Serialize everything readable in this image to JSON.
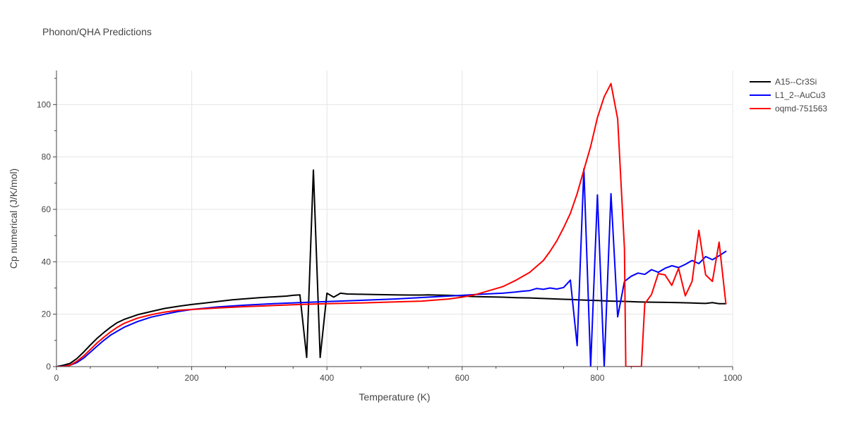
{
  "chart_data": {
    "type": "line",
    "title": "Phonon/QHA Predictions",
    "xlabel": "Temperature (K)",
    "ylabel": "Cp numerical (J/K/mol)",
    "xlim": [
      0,
      1000
    ],
    "ylim": [
      0,
      113
    ],
    "xticks": [
      0,
      200,
      400,
      600,
      800,
      1000
    ],
    "yticks": [
      0,
      20,
      40,
      60,
      80,
      100
    ],
    "grid": true,
    "legend_position": "top-right",
    "series": [
      {
        "name": "A15--Cr3Si",
        "color": "#000000",
        "x": [
          0,
          10,
          20,
          30,
          40,
          50,
          60,
          70,
          80,
          90,
          100,
          120,
          140,
          160,
          180,
          200,
          220,
          240,
          260,
          280,
          300,
          320,
          340,
          350,
          360,
          370,
          380,
          390,
          400,
          410,
          420,
          430,
          450,
          470,
          500,
          520,
          540,
          550,
          560,
          580,
          600,
          610,
          620,
          640,
          660,
          680,
          700,
          720,
          740,
          750,
          760,
          770,
          780,
          790,
          800,
          810,
          820,
          840,
          860,
          880,
          900,
          920,
          940,
          950,
          960,
          970,
          980,
          990
        ],
        "y": [
          0,
          0.5,
          1.2,
          3.0,
          5.5,
          8.2,
          10.8,
          13.0,
          15.0,
          16.8,
          18.0,
          19.8,
          21.0,
          22.2,
          23.0,
          23.7,
          24.3,
          24.9,
          25.5,
          25.9,
          26.3,
          26.6,
          26.9,
          27.2,
          27.4,
          3.5,
          75,
          3.5,
          28,
          26.5,
          28,
          27.7,
          27.6,
          27.5,
          27.4,
          27.3,
          27.3,
          27.4,
          27.3,
          27.2,
          27.0,
          26.8,
          26.7,
          26.6,
          26.5,
          26.3,
          26.2,
          26.0,
          25.8,
          25.7,
          25.6,
          25.5,
          25.4,
          25.3,
          25.2,
          25.1,
          25.0,
          24.9,
          24.7,
          24.6,
          24.5,
          24.4,
          24.3,
          24.2,
          24.1,
          24.4,
          24.0,
          24.0
        ]
      },
      {
        "name": "L1_2--AuCu3",
        "color": "#0000ff",
        "x": [
          0,
          10,
          20,
          30,
          40,
          50,
          60,
          70,
          80,
          90,
          100,
          120,
          140,
          160,
          180,
          200,
          240,
          280,
          320,
          360,
          400,
          450,
          500,
          550,
          600,
          620,
          640,
          660,
          680,
          690,
          700,
          710,
          720,
          730,
          740,
          750,
          760,
          770,
          780,
          790,
          800,
          810,
          820,
          830,
          840,
          850,
          860,
          870,
          880,
          890,
          900,
          910,
          920,
          930,
          940,
          950,
          960,
          970,
          980,
          990
        ],
        "y": [
          0,
          0.1,
          0.5,
          1.5,
          3.2,
          5.5,
          7.8,
          10.0,
          12.0,
          13.5,
          15.0,
          17.2,
          18.9,
          20.0,
          21.0,
          21.8,
          22.8,
          23.5,
          24.0,
          24.4,
          24.8,
          25.3,
          25.8,
          26.5,
          27.2,
          27.5,
          27.8,
          28.0,
          28.5,
          28.8,
          29.0,
          29.8,
          29.5,
          30.0,
          29.6,
          30.2,
          33.0,
          8.0,
          75.5,
          0,
          65.5,
          0,
          66,
          19,
          32.5,
          34.5,
          35.7,
          35.2,
          37.0,
          36.0,
          37.5,
          38.5,
          37.8,
          39.0,
          40.5,
          39.3,
          42.0,
          40.8,
          42.3,
          44.0
        ]
      },
      {
        "name": "oqmd-751563",
        "color": "#ff0000",
        "x": [
          0,
          10,
          20,
          30,
          40,
          50,
          60,
          70,
          80,
          90,
          100,
          120,
          140,
          160,
          180,
          200,
          240,
          280,
          320,
          360,
          400,
          450,
          500,
          540,
          580,
          600,
          620,
          640,
          660,
          680,
          700,
          720,
          730,
          740,
          750,
          760,
          770,
          780,
          790,
          800,
          810,
          820,
          830,
          840,
          842,
          865,
          870,
          880,
          890,
          900,
          910,
          920,
          930,
          940,
          950,
          960,
          970,
          980,
          990
        ],
        "y": [
          0,
          0,
          0.5,
          2.0,
          4.0,
          6.5,
          9.0,
          11.2,
          13.2,
          15.0,
          16.5,
          18.5,
          19.8,
          20.8,
          21.5,
          21.8,
          22.4,
          22.9,
          23.3,
          23.7,
          24.0,
          24.3,
          24.7,
          25.0,
          25.8,
          26.5,
          27.5,
          29.0,
          30.5,
          33.0,
          36.0,
          40.5,
          44.0,
          48.0,
          53.0,
          58.5,
          66.0,
          75.0,
          84.0,
          95.0,
          103.0,
          108.0,
          94.5,
          45.0,
          0,
          0,
          24.0,
          27.5,
          35.5,
          35.0,
          31.0,
          37.5,
          27.0,
          32.5,
          52.0,
          35.0,
          32.5,
          47.5,
          24.0
        ]
      }
    ]
  }
}
